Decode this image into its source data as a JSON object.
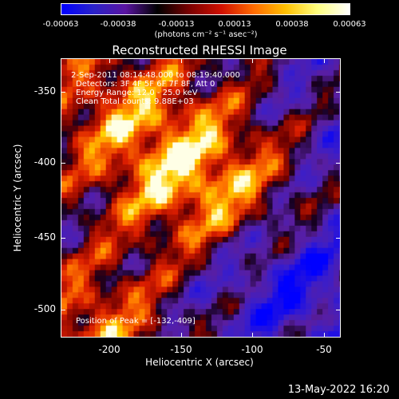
{
  "colorbar": {
    "ticks": [
      "-0.00063",
      "-0.00038",
      "-0.00013",
      "0.00013",
      "0.00038",
      "0.00063"
    ],
    "unit_label": "(photons cm⁻² s⁻¹ asec⁻²)",
    "colors": [
      "#0000ff",
      "#2a22c8",
      "#5a14a0",
      "#000000",
      "#7a0000",
      "#d01000",
      "#ff6a00",
      "#ffc000",
      "#ffff80",
      "#ffffff"
    ]
  },
  "title": "Reconstructed RHESSI Image",
  "info": {
    "time_range": "2-Sep-2011 08:14:48.000 to 08:19:40.000",
    "detectors": "Detectors: 3F 4F 5F 6F 7F 8F, Att 0",
    "energy_range": "Energy Range: 12.0 - 25.0 keV",
    "algorithm": "Clean     Total counts: 9.88E+03",
    "peak": "Position of Peak = [-132,-409]"
  },
  "axes": {
    "xlabel": "Heliocentric X (arcsec)",
    "ylabel": "Heliocentric Y (arcsec)",
    "xticks": [
      "-200",
      "-150",
      "-100",
      "-50"
    ],
    "yticks": [
      "-350",
      "-400",
      "-450",
      "-500"
    ]
  },
  "footer": {
    "date": "13-May-2022 16:20"
  }
}
